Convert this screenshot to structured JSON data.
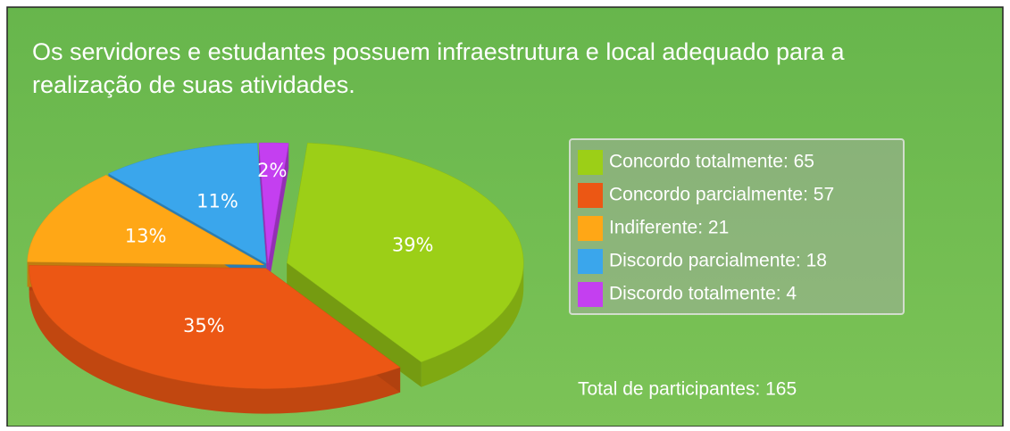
{
  "chart_data": {
    "type": "pie",
    "title": "Os servidores e estudantes possuem infraestrutura e local adequado para a",
    "subtitle": "realização de suas atividades.",
    "categories": [
      "Concordo totalmente: 65",
      "Concordo parcialmente: 57",
      "Indiferente: 21",
      "Discordo parcialmente: 18",
      "Discordo totalmente: 4"
    ],
    "values": [
      39,
      35,
      13,
      11,
      2
    ],
    "value_labels": [
      "39%",
      "35%",
      "13%",
      "11%",
      "2%"
    ],
    "colors": [
      "#9ccf17",
      "#ec5714",
      "#ffa716",
      "#3aa6ec",
      "#c43ff0"
    ],
    "annotation": "Total de participantes: 165"
  }
}
